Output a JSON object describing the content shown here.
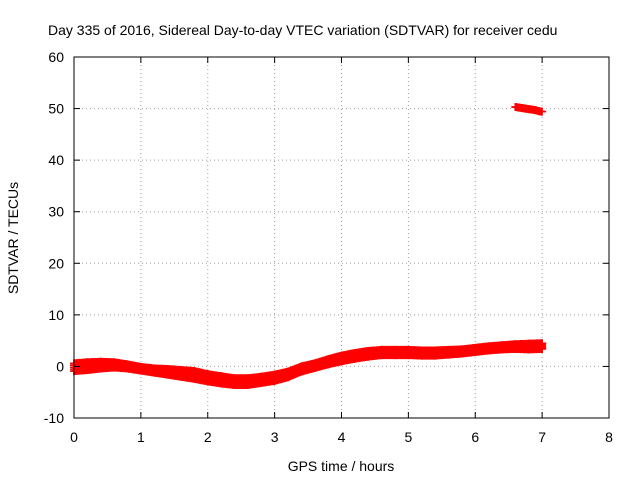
{
  "chart_data": {
    "type": "scatter",
    "title": "Day 335 of 2016, Sidereal Day-to-day VTEC variation (SDTVAR) for receiver cedu",
    "xlabel": "GPS time / hours",
    "ylabel": "SDTVAR / TECUs",
    "xlim": [
      0,
      8
    ],
    "ylim": [
      -10,
      60
    ],
    "xticks": [
      0,
      1,
      2,
      3,
      4,
      5,
      6,
      7,
      8
    ],
    "yticks": [
      -10,
      0,
      10,
      20,
      30,
      40,
      50,
      60
    ],
    "grid": true,
    "marker": "+",
    "series": [
      {
        "name": "main band (upper edge)",
        "color": "#ff0000",
        "x": [
          0.0,
          0.2,
          0.4,
          0.6,
          0.8,
          1.0,
          1.2,
          1.4,
          1.6,
          1.8,
          2.0,
          2.2,
          2.4,
          2.6,
          2.8,
          3.0,
          3.2,
          3.4,
          3.6,
          3.8,
          4.0,
          4.2,
          4.4,
          4.6,
          4.8,
          5.0,
          5.2,
          5.4,
          5.6,
          5.8,
          6.0,
          6.2,
          6.4,
          6.6,
          6.8,
          7.0
        ],
        "y": [
          0.6,
          0.8,
          0.9,
          0.8,
          0.4,
          -0.1,
          -0.4,
          -0.5,
          -0.7,
          -0.9,
          -1.5,
          -1.9,
          -2.3,
          -2.3,
          -2.0,
          -1.6,
          -1.0,
          0.0,
          0.6,
          1.4,
          2.1,
          2.6,
          3.0,
          3.2,
          3.2,
          3.2,
          3.1,
          3.1,
          3.2,
          3.3,
          3.6,
          3.9,
          4.1,
          4.3,
          4.4,
          4.5
        ]
      },
      {
        "name": "main band (lower edge)",
        "color": "#ff0000",
        "x": [
          0.0,
          0.2,
          0.4,
          0.6,
          0.8,
          1.0,
          1.2,
          1.4,
          1.6,
          1.8,
          2.0,
          2.2,
          2.4,
          2.6,
          2.8,
          3.0,
          3.2,
          3.4,
          3.6,
          3.8,
          4.0,
          4.2,
          4.4,
          4.6,
          4.8,
          5.0,
          5.2,
          5.4,
          5.6,
          5.8,
          6.0,
          6.2,
          6.4,
          6.6,
          6.8,
          7.0
        ],
        "y": [
          -0.9,
          -0.7,
          -0.4,
          -0.2,
          -0.4,
          -0.8,
          -1.2,
          -1.6,
          -2.0,
          -2.4,
          -2.9,
          -3.3,
          -3.6,
          -3.6,
          -3.2,
          -2.8,
          -2.1,
          -1.0,
          -0.3,
          0.4,
          1.0,
          1.5,
          1.9,
          2.2,
          2.2,
          2.2,
          2.1,
          2.1,
          2.3,
          2.5,
          2.8,
          3.1,
          3.3,
          3.4,
          3.3,
          3.4
        ]
      },
      {
        "name": "upper segment",
        "color": "#ff0000",
        "x": [
          6.6,
          6.65,
          6.7,
          6.75,
          6.8,
          6.85,
          6.9,
          6.95,
          7.0
        ],
        "y": [
          50.3,
          50.2,
          50.1,
          50.0,
          49.9,
          49.8,
          49.7,
          49.5,
          49.4
        ]
      }
    ]
  }
}
